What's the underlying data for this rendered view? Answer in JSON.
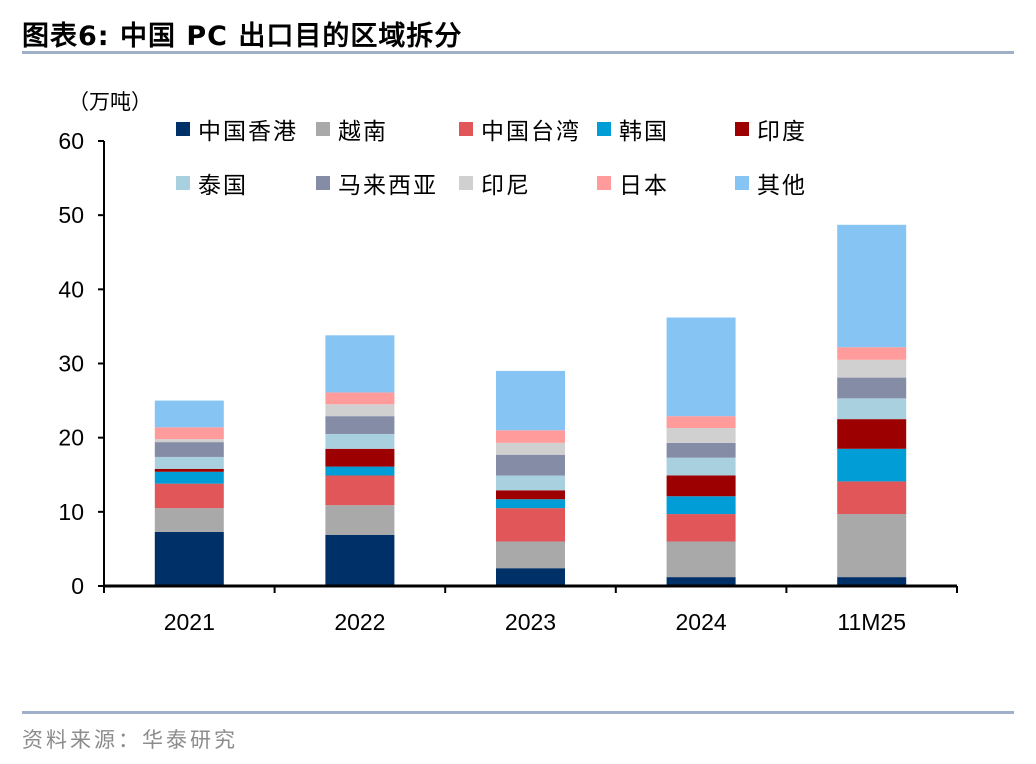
{
  "title": "图表6:  中国 PC 出口目的区域拆分",
  "source": "资料来源：华泰研究",
  "chart_data": {
    "type": "bar",
    "stacked": true,
    "title": "",
    "ylabel": "（万吨）",
    "xlabel": "",
    "ylim": [
      0,
      60
    ],
    "yticks": [
      "0",
      "10",
      "20",
      "30",
      "40",
      "50",
      "60"
    ],
    "categories": [
      "2021",
      "2022",
      "2023",
      "2024",
      "11M25"
    ],
    "legend_position": "top",
    "grid": false,
    "series": [
      {
        "name": "中国香港",
        "color": "#003068",
        "values": [
          7.3,
          6.9,
          2.4,
          1.2,
          1.2
        ]
      },
      {
        "name": "越南",
        "color": "#a9a9a9",
        "values": [
          3.2,
          4.0,
          3.6,
          4.8,
          8.5
        ]
      },
      {
        "name": "中国台湾",
        "color": "#e15759",
        "values": [
          3.3,
          4.0,
          4.5,
          3.7,
          4.4
        ]
      },
      {
        "name": "韩国",
        "color": "#009dd6",
        "values": [
          1.6,
          1.2,
          1.2,
          2.4,
          4.4
        ]
      },
      {
        "name": "印度",
        "color": "#9c0000",
        "values": [
          0.4,
          2.4,
          1.2,
          2.8,
          4.0
        ]
      },
      {
        "name": "泰国",
        "color": "#a9d0df",
        "values": [
          1.6,
          2.0,
          2.0,
          2.4,
          2.8
        ]
      },
      {
        "name": "马来西亚",
        "color": "#848ca6",
        "values": [
          2.0,
          2.4,
          2.8,
          2.0,
          2.8
        ]
      },
      {
        "name": "印尼",
        "color": "#d0d0d0",
        "values": [
          0.4,
          1.6,
          1.6,
          2.0,
          2.4
        ]
      },
      {
        "name": "日本",
        "color": "#ff9b9b",
        "values": [
          1.6,
          1.6,
          1.7,
          1.6,
          1.7
        ]
      },
      {
        "name": "其他",
        "color": "#86c4f4",
        "values": [
          3.6,
          7.7,
          8.0,
          13.3,
          16.5
        ]
      }
    ]
  }
}
